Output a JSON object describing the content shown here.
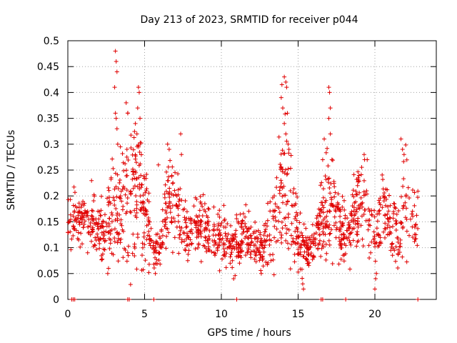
{
  "chart_data": {
    "type": "scatter",
    "title": "Day 213 of 2023, SRMTID for receiver p044",
    "xlabel": "GPS time / hours",
    "ylabel": "SRMTID / TECUs",
    "xlim": [
      0,
      24
    ],
    "ylim": [
      0,
      0.5
    ],
    "x_ticks": [
      0,
      5,
      10,
      15,
      20
    ],
    "y_ticks": [
      0,
      0.05,
      0.1,
      0.15,
      0.2,
      0.25,
      0.3,
      0.35,
      0.4,
      0.45,
      0.5
    ],
    "x_tick_labels": [
      "0",
      "5",
      "10",
      "15",
      "20"
    ],
    "y_tick_labels": [
      "0",
      "0.05",
      "0.1",
      "0.15",
      "0.2",
      "0.25",
      "0.3",
      "0.35",
      "0.4",
      "0.45",
      "0.5"
    ],
    "grid": true,
    "marker": "plus",
    "color": "#e00000",
    "series": [
      {
        "name": "SRMTID",
        "trend": [
          [
            0.0,
            0.14,
            0.03
          ],
          [
            0.5,
            0.16,
            0.03
          ],
          [
            1.0,
            0.16,
            0.03
          ],
          [
            1.5,
            0.15,
            0.03
          ],
          [
            2.0,
            0.14,
            0.03
          ],
          [
            2.5,
            0.13,
            0.03
          ],
          [
            3.0,
            0.2,
            0.07
          ],
          [
            3.5,
            0.19,
            0.05
          ],
          [
            4.0,
            0.2,
            0.06
          ],
          [
            4.5,
            0.22,
            0.07
          ],
          [
            5.0,
            0.18,
            0.05
          ],
          [
            5.5,
            0.09,
            0.02
          ],
          [
            6.0,
            0.1,
            0.02
          ],
          [
            6.5,
            0.2,
            0.05
          ],
          [
            7.0,
            0.18,
            0.04
          ],
          [
            7.5,
            0.15,
            0.03
          ],
          [
            8.0,
            0.14,
            0.03
          ],
          [
            8.5,
            0.15,
            0.03
          ],
          [
            9.0,
            0.14,
            0.03
          ],
          [
            9.5,
            0.12,
            0.03
          ],
          [
            10.0,
            0.12,
            0.03
          ],
          [
            10.5,
            0.1,
            0.02
          ],
          [
            11.0,
            0.11,
            0.03
          ],
          [
            11.5,
            0.13,
            0.03
          ],
          [
            12.0,
            0.1,
            0.02
          ],
          [
            12.5,
            0.1,
            0.02
          ],
          [
            13.0,
            0.12,
            0.03
          ],
          [
            13.5,
            0.16,
            0.04
          ],
          [
            14.0,
            0.24,
            0.08
          ],
          [
            14.5,
            0.18,
            0.05
          ],
          [
            15.0,
            0.12,
            0.03
          ],
          [
            15.5,
            0.09,
            0.02
          ],
          [
            16.0,
            0.11,
            0.02
          ],
          [
            16.5,
            0.15,
            0.03
          ],
          [
            17.0,
            0.2,
            0.06
          ],
          [
            17.5,
            0.15,
            0.03
          ],
          [
            18.0,
            0.12,
            0.03
          ],
          [
            18.5,
            0.15,
            0.03
          ],
          [
            19.0,
            0.18,
            0.04
          ],
          [
            19.5,
            0.17,
            0.04
          ],
          [
            20.0,
            0.11,
            0.03
          ],
          [
            20.5,
            0.17,
            0.04
          ],
          [
            21.0,
            0.15,
            0.03
          ],
          [
            21.5,
            0.12,
            0.03
          ],
          [
            22.0,
            0.2,
            0.05
          ],
          [
            22.5,
            0.16,
            0.03
          ]
        ],
        "spikes": [
          [
            3.1,
            0.48
          ],
          [
            3.15,
            0.46
          ],
          [
            3.2,
            0.44
          ],
          [
            3.05,
            0.41
          ],
          [
            3.1,
            0.36
          ],
          [
            3.15,
            0.35
          ],
          [
            3.2,
            0.33
          ],
          [
            3.25,
            0.3
          ],
          [
            3.8,
            0.38
          ],
          [
            3.9,
            0.36
          ],
          [
            3.85,
            0.29
          ],
          [
            4.6,
            0.41
          ],
          [
            4.65,
            0.4
          ],
          [
            4.55,
            0.37
          ],
          [
            4.7,
            0.35
          ],
          [
            4.4,
            0.34
          ],
          [
            4.5,
            0.32
          ],
          [
            6.5,
            0.3
          ],
          [
            6.6,
            0.29
          ],
          [
            7.35,
            0.32
          ],
          [
            7.4,
            0.28
          ],
          [
            5.9,
            0.26
          ],
          [
            14.1,
            0.43
          ],
          [
            14.2,
            0.42
          ],
          [
            14.25,
            0.41
          ],
          [
            13.9,
            0.39
          ],
          [
            14.0,
            0.37
          ],
          [
            14.3,
            0.36
          ],
          [
            14.1,
            0.34
          ],
          [
            14.2,
            0.32
          ],
          [
            14.35,
            0.3
          ],
          [
            14.4,
            0.29
          ],
          [
            16.7,
            0.31
          ],
          [
            16.6,
            0.27
          ],
          [
            17.0,
            0.41
          ],
          [
            17.05,
            0.4
          ],
          [
            17.1,
            0.37
          ],
          [
            17.0,
            0.35
          ],
          [
            17.1,
            0.32
          ],
          [
            17.2,
            0.27
          ],
          [
            19.3,
            0.28
          ],
          [
            19.5,
            0.27
          ],
          [
            21.7,
            0.31
          ],
          [
            21.8,
            0.29
          ],
          [
            21.9,
            0.28
          ],
          [
            20.0,
            0.02
          ],
          [
            20.05,
            0.04
          ],
          [
            20.1,
            0.05
          ],
          [
            15.3,
            0.03
          ],
          [
            15.35,
            0.02
          ],
          [
            2.6,
            0.05
          ],
          [
            2.65,
            0.06
          ],
          [
            12.6,
            0.05
          ],
          [
            10.8,
            0.04
          ]
        ],
        "baseline_x": [
          0.25,
          0.35,
          0.45,
          3.9,
          4.0,
          5.6,
          11.0,
          16.5,
          16.6,
          18.1,
          22.8
        ]
      }
    ]
  }
}
